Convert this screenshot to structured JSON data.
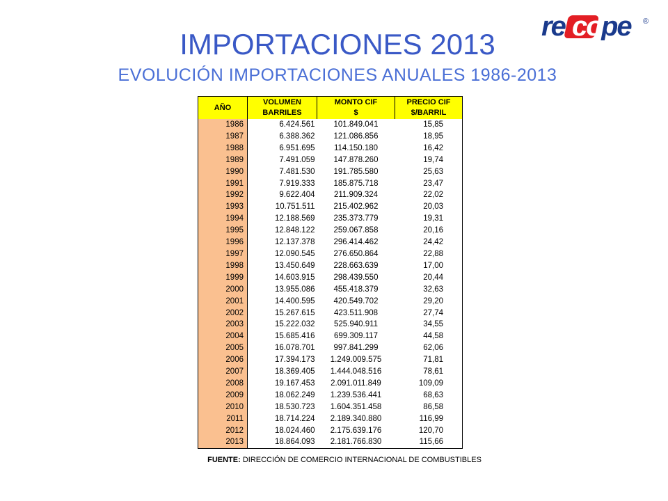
{
  "logo": {
    "text": "recope",
    "registered": "®",
    "brand_color": "#1a3a8c",
    "accent_color": "#e31e24"
  },
  "title": "IMPORTACIONES 2013",
  "subtitle": "EVOLUCIÓN IMPORTACIONES ANUALES 1986-2013",
  "table": {
    "headers": [
      {
        "line1": "AÑO",
        "line2": ""
      },
      {
        "line1": "VOLUMEN",
        "line2": "BARRILES"
      },
      {
        "line1": "MONTO CIF",
        "line2": "$"
      },
      {
        "line1": "PRECIO CIF",
        "line2": "$/BARRIL"
      }
    ],
    "rows": [
      [
        "1986",
        "6.424.561",
        "101.849.041",
        "15,85"
      ],
      [
        "1987",
        "6.388.362",
        "121.086.856",
        "18,95"
      ],
      [
        "1988",
        "6.951.695",
        "114.150.180",
        "16,42"
      ],
      [
        "1989",
        "7.491.059",
        "147.878.260",
        "19,74"
      ],
      [
        "1990",
        "7.481.530",
        "191.785.580",
        "25,63"
      ],
      [
        "1991",
        "7.919.333",
        "185.875.718",
        "23,47"
      ],
      [
        "1992",
        "9.622.404",
        "211.909.324",
        "22,02"
      ],
      [
        "1993",
        "10.751.511",
        "215.402.962",
        "20,03"
      ],
      [
        "1994",
        "12.188.569",
        "235.373.779",
        "19,31"
      ],
      [
        "1995",
        "12.848.122",
        "259.067.858",
        "20,16"
      ],
      [
        "1996",
        "12.137.378",
        "296.414.462",
        "24,42"
      ],
      [
        "1997",
        "12.090.545",
        "276.650.864",
        "22,88"
      ],
      [
        "1998",
        "13.450.649",
        "228.663.639",
        "17,00"
      ],
      [
        "1999",
        "14.603.915",
        "298.439.550",
        "20,44"
      ],
      [
        "2000",
        "13.955.086",
        "455.418.379",
        "32,63"
      ],
      [
        "2001",
        "14.400.595",
        "420.549.702",
        "29,20"
      ],
      [
        "2002",
        "15.267.615",
        "423.511.908",
        "27,74"
      ],
      [
        "2003",
        "15.222.032",
        "525.940.911",
        "34,55"
      ],
      [
        "2004",
        "15.685.416",
        "699.309.117",
        "44,58"
      ],
      [
        "2005",
        "16.078.701",
        "997.841.299",
        "62,06"
      ],
      [
        "2006",
        "17.394.173",
        "1.249.009.575",
        "71,81"
      ],
      [
        "2007",
        "18.369.405",
        "1.444.048.516",
        "78,61"
      ],
      [
        "2008",
        "19.167.453",
        "2.091.011.849",
        "109,09"
      ],
      [
        "2009",
        "18.062.249",
        "1.239.536.441",
        "68,63"
      ],
      [
        "2010",
        "18.530.723",
        "1.604.351.458",
        "86,58"
      ],
      [
        "2011",
        "18.714.224",
        "2.189.340.880",
        "116,99"
      ],
      [
        "2012",
        "18.024.460",
        "2.175.639.176",
        "120,70"
      ],
      [
        "2013",
        "18.864.093",
        "2.181.766.830",
        "115,66"
      ]
    ]
  },
  "source": {
    "label": "FUENTE:",
    "text": " DIRECCIÓN DE COMERCIO INTERNACIONAL DE COMBUSTIBLES"
  }
}
